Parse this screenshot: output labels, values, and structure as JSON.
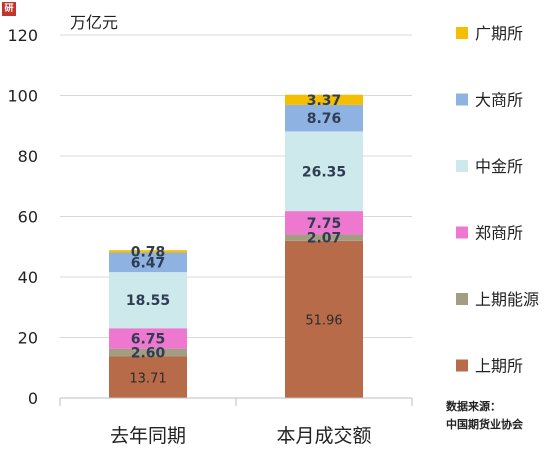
{
  "logo_text": "研",
  "source": {
    "line1": "数据来源：",
    "line2": "中国期货业协会"
  },
  "chart_data": {
    "type": "bar",
    "stacked": true,
    "ylabel": "万亿元",
    "ylim": [
      0,
      120
    ],
    "yticks": [
      0,
      20,
      40,
      60,
      80,
      100,
      120
    ],
    "grid": true,
    "legend_position": "right",
    "categories": [
      "去年同期",
      "本月成交额"
    ],
    "series": [
      {
        "name": "上期所",
        "color": "#b86b49",
        "values": [
          13.71,
          51.96
        ]
      },
      {
        "name": "上期能源",
        "color": "#a39d82",
        "values": [
          2.6,
          2.07
        ]
      },
      {
        "name": "郑商所",
        "color": "#ee77d0",
        "values": [
          6.75,
          7.75
        ]
      },
      {
        "name": "中金所",
        "color": "#cde9ec",
        "values": [
          18.55,
          26.35
        ]
      },
      {
        "name": "大商所",
        "color": "#8eb2e2",
        "values": [
          6.47,
          8.76
        ]
      },
      {
        "name": "广期所",
        "color": "#f5be00",
        "values": [
          0.78,
          3.37
        ]
      }
    ],
    "data_labels": [
      [
        "13.71",
        "51.96"
      ],
      [
        "2.60",
        "2.07"
      ],
      [
        "6.75",
        "7.75"
      ],
      [
        "18.55",
        "26.35"
      ],
      [
        "6.47",
        "8.76"
      ],
      [
        "0.78",
        "3.37"
      ]
    ]
  }
}
